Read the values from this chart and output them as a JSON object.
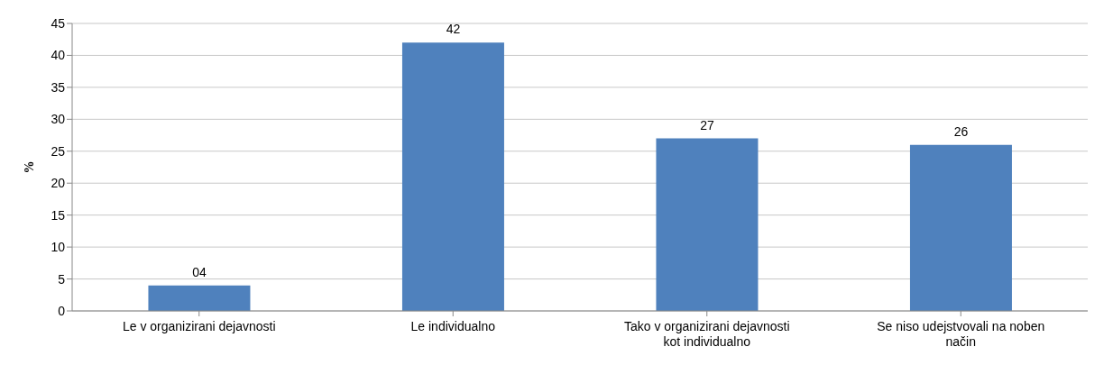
{
  "chart_data": {
    "type": "bar",
    "ylabel": "%",
    "categories": [
      "Le v organizirani dejavnosti",
      "Le individualno",
      "Tako v organizirani dejavnosti kot individualno",
      "Se niso udejstvovali na noben način"
    ],
    "values": [
      4,
      42,
      27,
      26
    ],
    "value_labels": [
      "04",
      "42",
      "27",
      "26"
    ],
    "color": "#4f81bd",
    "ylim": [
      0,
      45
    ],
    "yticks": [
      0,
      5,
      10,
      15,
      20,
      25,
      30,
      35,
      40,
      45
    ],
    "grid": "y",
    "legend": false
  }
}
